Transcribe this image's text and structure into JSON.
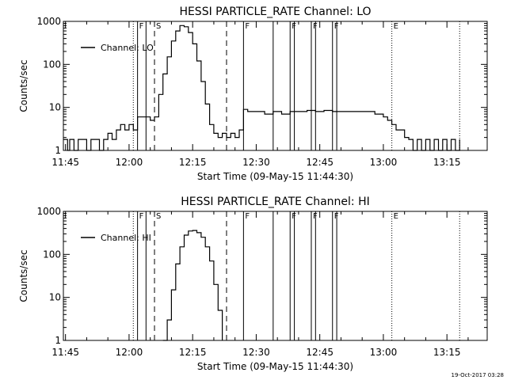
{
  "footer_date": "19-Oct-2017 03:28",
  "chart_data": [
    {
      "type": "line",
      "title": "HESSI PARTICLE_RATE Channel: LO",
      "xlabel": "Start Time (09-May-15 11:44:30)",
      "ylabel": "Counts/sec",
      "yscale": "log",
      "ylim": [
        1,
        1000
      ],
      "xlim": [
        "11:44:30",
        "13:24:30"
      ],
      "x_tick_labels": [
        "11:45",
        "12:00",
        "12:15",
        "12:30",
        "12:45",
        "13:00",
        "13:15"
      ],
      "y_tick_labels": [
        "1",
        "10",
        "100",
        "1000"
      ],
      "legend": "Channel: LO",
      "legend_position": "upper-left",
      "vertical_markers": [
        {
          "time": "12:01",
          "style": "dotted",
          "label": ""
        },
        {
          "time": "12:02",
          "style": "solid",
          "label": "F"
        },
        {
          "time": "12:04",
          "style": "solid",
          "label": ""
        },
        {
          "time": "12:06",
          "style": "dashed",
          "label": "S"
        },
        {
          "time": "12:23",
          "style": "dashed",
          "label": ""
        },
        {
          "time": "12:27",
          "style": "solid",
          "label": "F"
        },
        {
          "time": "12:34",
          "style": "solid",
          "label": ""
        },
        {
          "time": "12:38",
          "style": "solid",
          "label": "F"
        },
        {
          "time": "12:39",
          "style": "solid",
          "label": ""
        },
        {
          "time": "12:43",
          "style": "solid",
          "label": "F"
        },
        {
          "time": "12:44",
          "style": "solid",
          "label": ""
        },
        {
          "time": "12:48",
          "style": "solid",
          "label": "F"
        },
        {
          "time": "12:49",
          "style": "solid",
          "label": ""
        },
        {
          "time": "13:02",
          "style": "dotted",
          "label": "E"
        },
        {
          "time": "13:18",
          "style": "dotted",
          "label": ""
        }
      ],
      "series": [
        {
          "name": "Channel: LO",
          "x": [
            "11:44:30",
            "11:45:30",
            "11:46",
            "11:47",
            "11:48",
            "11:49",
            "11:50",
            "11:51",
            "11:52",
            "11:53",
            "11:54",
            "11:55",
            "11:56",
            "11:57",
            "11:58",
            "11:59",
            "12:00",
            "12:01",
            "12:02",
            "12:03",
            "12:04",
            "12:05",
            "12:06",
            "12:07",
            "12:08",
            "12:09",
            "12:10",
            "12:11",
            "12:12",
            "12:13",
            "12:14",
            "12:15",
            "12:16",
            "12:17",
            "12:18",
            "12:19",
            "12:20",
            "12:21",
            "12:22",
            "12:23",
            "12:24",
            "12:25",
            "12:26",
            "12:27",
            "12:28",
            "12:30",
            "12:32",
            "12:34",
            "12:36",
            "12:38",
            "12:40",
            "12:42",
            "12:44",
            "12:46",
            "12:48",
            "12:50",
            "12:52",
            "12:54",
            "12:56",
            "12:58",
            "13:00",
            "13:01",
            "13:02",
            "13:03",
            "13:04",
            "13:05",
            "13:06",
            "13:07",
            "13:08",
            "13:09",
            "13:10",
            "13:11",
            "13:12",
            "13:13",
            "13:14",
            "13:15",
            "13:16",
            "13:17",
            "13:18"
          ],
          "y": [
            1.8,
            1,
            1.8,
            1,
            1.8,
            1.8,
            1,
            1.8,
            1.8,
            1,
            1.8,
            2.5,
            1.8,
            3,
            4,
            3,
            4,
            3,
            6,
            6,
            6,
            5,
            6,
            20,
            60,
            150,
            350,
            600,
            800,
            750,
            550,
            300,
            120,
            40,
            12,
            4,
            2.5,
            2,
            2.5,
            2,
            2.5,
            2,
            3,
            9,
            8,
            8,
            7,
            8,
            7,
            8,
            8,
            8.5,
            8,
            8.5,
            8,
            8,
            8,
            8,
            8,
            7,
            6,
            5,
            4,
            3,
            3,
            2,
            1.8,
            1,
            1.8,
            1,
            1.8,
            1,
            1.8,
            1,
            1.8,
            1,
            1.8,
            1,
            1.8
          ]
        }
      ]
    },
    {
      "type": "line",
      "title": "HESSI PARTICLE_RATE Channel: HI",
      "xlabel": "Start Time (09-May-15 11:44:30)",
      "ylabel": "Counts/sec",
      "yscale": "log",
      "ylim": [
        1,
        1000
      ],
      "xlim": [
        "11:44:30",
        "13:24:30"
      ],
      "x_tick_labels": [
        "11:45",
        "12:00",
        "12:15",
        "12:30",
        "12:45",
        "13:00",
        "13:15"
      ],
      "y_tick_labels": [
        "1",
        "10",
        "100",
        "1000"
      ],
      "legend": "Channel: HI",
      "legend_position": "upper-left",
      "vertical_markers": [
        {
          "time": "12:01",
          "style": "dotted",
          "label": ""
        },
        {
          "time": "12:02",
          "style": "solid",
          "label": "F"
        },
        {
          "time": "12:04",
          "style": "solid",
          "label": ""
        },
        {
          "time": "12:06",
          "style": "dashed",
          "label": "S"
        },
        {
          "time": "12:23",
          "style": "dashed",
          "label": ""
        },
        {
          "time": "12:27",
          "style": "solid",
          "label": "F"
        },
        {
          "time": "12:34",
          "style": "solid",
          "label": ""
        },
        {
          "time": "12:38",
          "style": "solid",
          "label": "F"
        },
        {
          "time": "12:39",
          "style": "solid",
          "label": ""
        },
        {
          "time": "12:43",
          "style": "solid",
          "label": "F"
        },
        {
          "time": "12:44",
          "style": "solid",
          "label": ""
        },
        {
          "time": "12:48",
          "style": "solid",
          "label": "F"
        },
        {
          "time": "12:49",
          "style": "solid",
          "label": ""
        },
        {
          "time": "13:02",
          "style": "dotted",
          "label": "E"
        },
        {
          "time": "13:18",
          "style": "dotted",
          "label": ""
        }
      ],
      "series": [
        {
          "name": "Channel: HI",
          "x": [
            "12:08",
            "12:09",
            "12:10",
            "12:11",
            "12:12",
            "12:13",
            "12:14",
            "12:15",
            "12:16",
            "12:17",
            "12:18",
            "12:19",
            "12:20",
            "12:21",
            "12:22"
          ],
          "y": [
            1,
            3,
            15,
            60,
            150,
            280,
            350,
            360,
            320,
            250,
            150,
            70,
            20,
            5,
            1
          ]
        }
      ]
    }
  ]
}
